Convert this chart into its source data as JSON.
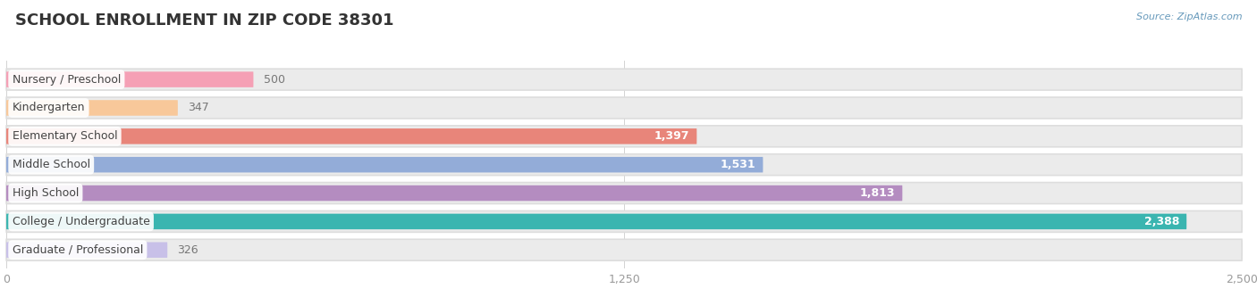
{
  "title": "SCHOOL ENROLLMENT IN ZIP CODE 38301",
  "source": "Source: ZipAtlas.com",
  "categories": [
    "Nursery / Preschool",
    "Kindergarten",
    "Elementary School",
    "Middle School",
    "High School",
    "College / Undergraduate",
    "Graduate / Professional"
  ],
  "values": [
    500,
    347,
    1397,
    1531,
    1813,
    2388,
    326
  ],
  "bar_colors": [
    "#f5a0b5",
    "#f8c89a",
    "#e8857a",
    "#93acd8",
    "#b48cc0",
    "#3ab5b0",
    "#c8c0e8"
  ],
  "bar_bg_color": "#ebebeb",
  "value_inside_color": "#ffffff",
  "value_outside_color": "#777777",
  "xlim": [
    0,
    2500
  ],
  "xticks": [
    0,
    1250,
    2500
  ],
  "title_fontsize": 13,
  "label_fontsize": 9,
  "value_fontsize": 9,
  "bg_color": "#ffffff",
  "bar_height": 0.55,
  "bg_bar_height": 0.75,
  "inside_threshold": 1200
}
